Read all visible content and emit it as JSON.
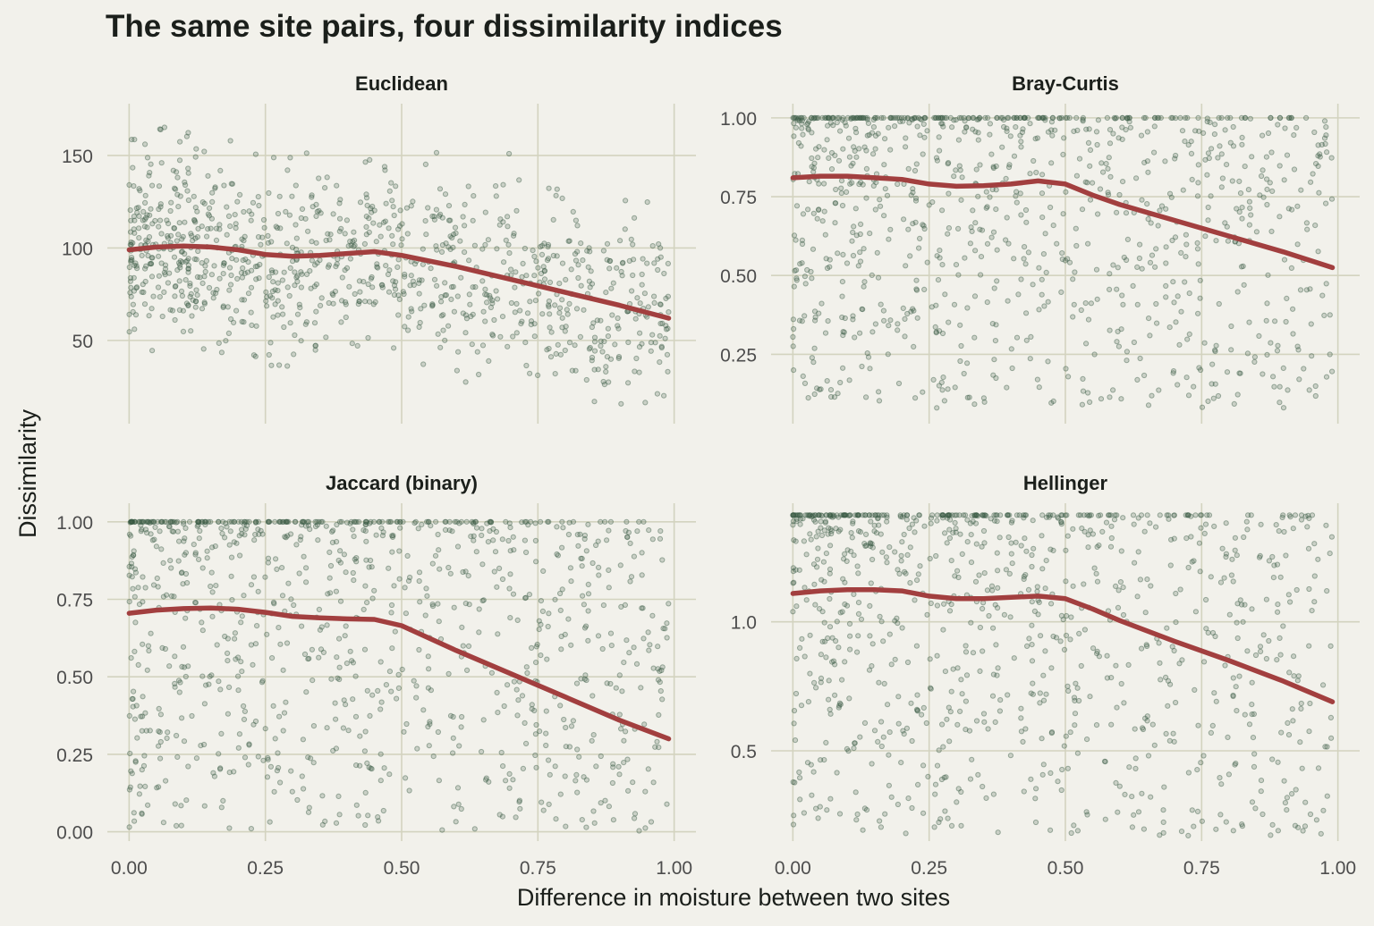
{
  "chart_data": {
    "type": "scatter",
    "title": "The same site pairs, four dissimilarity indices",
    "xlabel": "Difference in moisture between two sites",
    "ylabel": "Dissimilarity",
    "x_ticks": [
      "0.00",
      "0.25",
      "0.50",
      "0.75",
      "1.00"
    ],
    "xlim": [
      -0.04,
      1.04
    ],
    "grid": true,
    "colors": {
      "background": "#f2f1eb",
      "grid": "#d3d3bf",
      "points": "#3a5a44",
      "trend": "#a23f3f",
      "text": "#1b1f1b",
      "tick_text": "#4d4d4d"
    },
    "panels": [
      {
        "name": "Euclidean",
        "ylim": [
          5,
          178
        ],
        "y_ticks": [
          {
            "value": 50,
            "label": "50"
          },
          {
            "value": 100,
            "label": "100"
          },
          {
            "value": 150,
            "label": "150"
          }
        ],
        "trend": [
          [
            0.0,
            99
          ],
          [
            0.05,
            100.5
          ],
          [
            0.1,
            101
          ],
          [
            0.15,
            100.5
          ],
          [
            0.2,
            99
          ],
          [
            0.25,
            96.5
          ],
          [
            0.3,
            95.5
          ],
          [
            0.35,
            96
          ],
          [
            0.4,
            97
          ],
          [
            0.45,
            98
          ],
          [
            0.5,
            96
          ],
          [
            0.6,
            90
          ],
          [
            0.7,
            83
          ],
          [
            0.8,
            76
          ],
          [
            0.9,
            69
          ],
          [
            0.99,
            62
          ]
        ],
        "scatter_summary": {
          "n_points": 1000,
          "x_range": [
            0,
            0.99
          ],
          "y_range": [
            12,
            168
          ],
          "ceiling": null
        }
      },
      {
        "name": "Bray-Curtis",
        "ylim": [
          0.03,
          1.045
        ],
        "y_ticks": [
          {
            "value": 0.25,
            "label": "0.25"
          },
          {
            "value": 0.5,
            "label": "0.50"
          },
          {
            "value": 0.75,
            "label": "0.75"
          },
          {
            "value": 1.0,
            "label": "1.00"
          }
        ],
        "trend": [
          [
            0.0,
            0.81
          ],
          [
            0.05,
            0.815
          ],
          [
            0.1,
            0.815
          ],
          [
            0.15,
            0.81
          ],
          [
            0.2,
            0.805
          ],
          [
            0.25,
            0.79
          ],
          [
            0.3,
            0.783
          ],
          [
            0.35,
            0.785
          ],
          [
            0.4,
            0.79
          ],
          [
            0.45,
            0.8
          ],
          [
            0.5,
            0.79
          ],
          [
            0.55,
            0.755
          ],
          [
            0.6,
            0.725
          ],
          [
            0.7,
            0.675
          ],
          [
            0.8,
            0.625
          ],
          [
            0.9,
            0.575
          ],
          [
            0.99,
            0.525
          ]
        ],
        "scatter_summary": {
          "n_points": 1000,
          "x_range": [
            0,
            0.99
          ],
          "y_range": [
            0.08,
            1.0
          ],
          "ceiling": 1.0
        }
      },
      {
        "name": "Jaccard (binary)",
        "ylim": [
          -0.03,
          1.06
        ],
        "y_ticks": [
          {
            "value": 0,
            "label": "0.00"
          },
          {
            "value": 0.25,
            "label": "0.25"
          },
          {
            "value": 0.5,
            "label": "0.50"
          },
          {
            "value": 0.75,
            "label": "0.75"
          },
          {
            "value": 1.0,
            "label": "1.00"
          }
        ],
        "trend": [
          [
            0.0,
            0.705
          ],
          [
            0.05,
            0.715
          ],
          [
            0.1,
            0.72
          ],
          [
            0.15,
            0.722
          ],
          [
            0.2,
            0.718
          ],
          [
            0.25,
            0.708
          ],
          [
            0.3,
            0.695
          ],
          [
            0.35,
            0.69
          ],
          [
            0.4,
            0.687
          ],
          [
            0.45,
            0.685
          ],
          [
            0.5,
            0.665
          ],
          [
            0.55,
            0.625
          ],
          [
            0.6,
            0.585
          ],
          [
            0.7,
            0.51
          ],
          [
            0.8,
            0.435
          ],
          [
            0.9,
            0.36
          ],
          [
            0.99,
            0.3
          ]
        ],
        "scatter_summary": {
          "n_points": 1000,
          "x_range": [
            0,
            0.99
          ],
          "y_range": [
            0.0,
            1.0
          ],
          "ceiling": 1.0
        }
      },
      {
        "name": "Hellinger",
        "ylim": [
          0.15,
          1.46
        ],
        "y_ticks": [
          {
            "value": 0.5,
            "label": "0.5"
          },
          {
            "value": 1.0,
            "label": "1.0"
          }
        ],
        "trend": [
          [
            0.0,
            1.11
          ],
          [
            0.05,
            1.12
          ],
          [
            0.1,
            1.125
          ],
          [
            0.15,
            1.125
          ],
          [
            0.2,
            1.12
          ],
          [
            0.25,
            1.1
          ],
          [
            0.3,
            1.09
          ],
          [
            0.35,
            1.09
          ],
          [
            0.4,
            1.095
          ],
          [
            0.45,
            1.1
          ],
          [
            0.5,
            1.09
          ],
          [
            0.55,
            1.05
          ],
          [
            0.6,
            1.005
          ],
          [
            0.7,
            0.925
          ],
          [
            0.8,
            0.85
          ],
          [
            0.9,
            0.77
          ],
          [
            0.99,
            0.69
          ]
        ],
        "scatter_summary": {
          "n_points": 1000,
          "x_range": [
            0,
            0.99
          ],
          "y_range": [
            0.17,
            1.414
          ],
          "ceiling": 1.414
        }
      }
    ]
  }
}
